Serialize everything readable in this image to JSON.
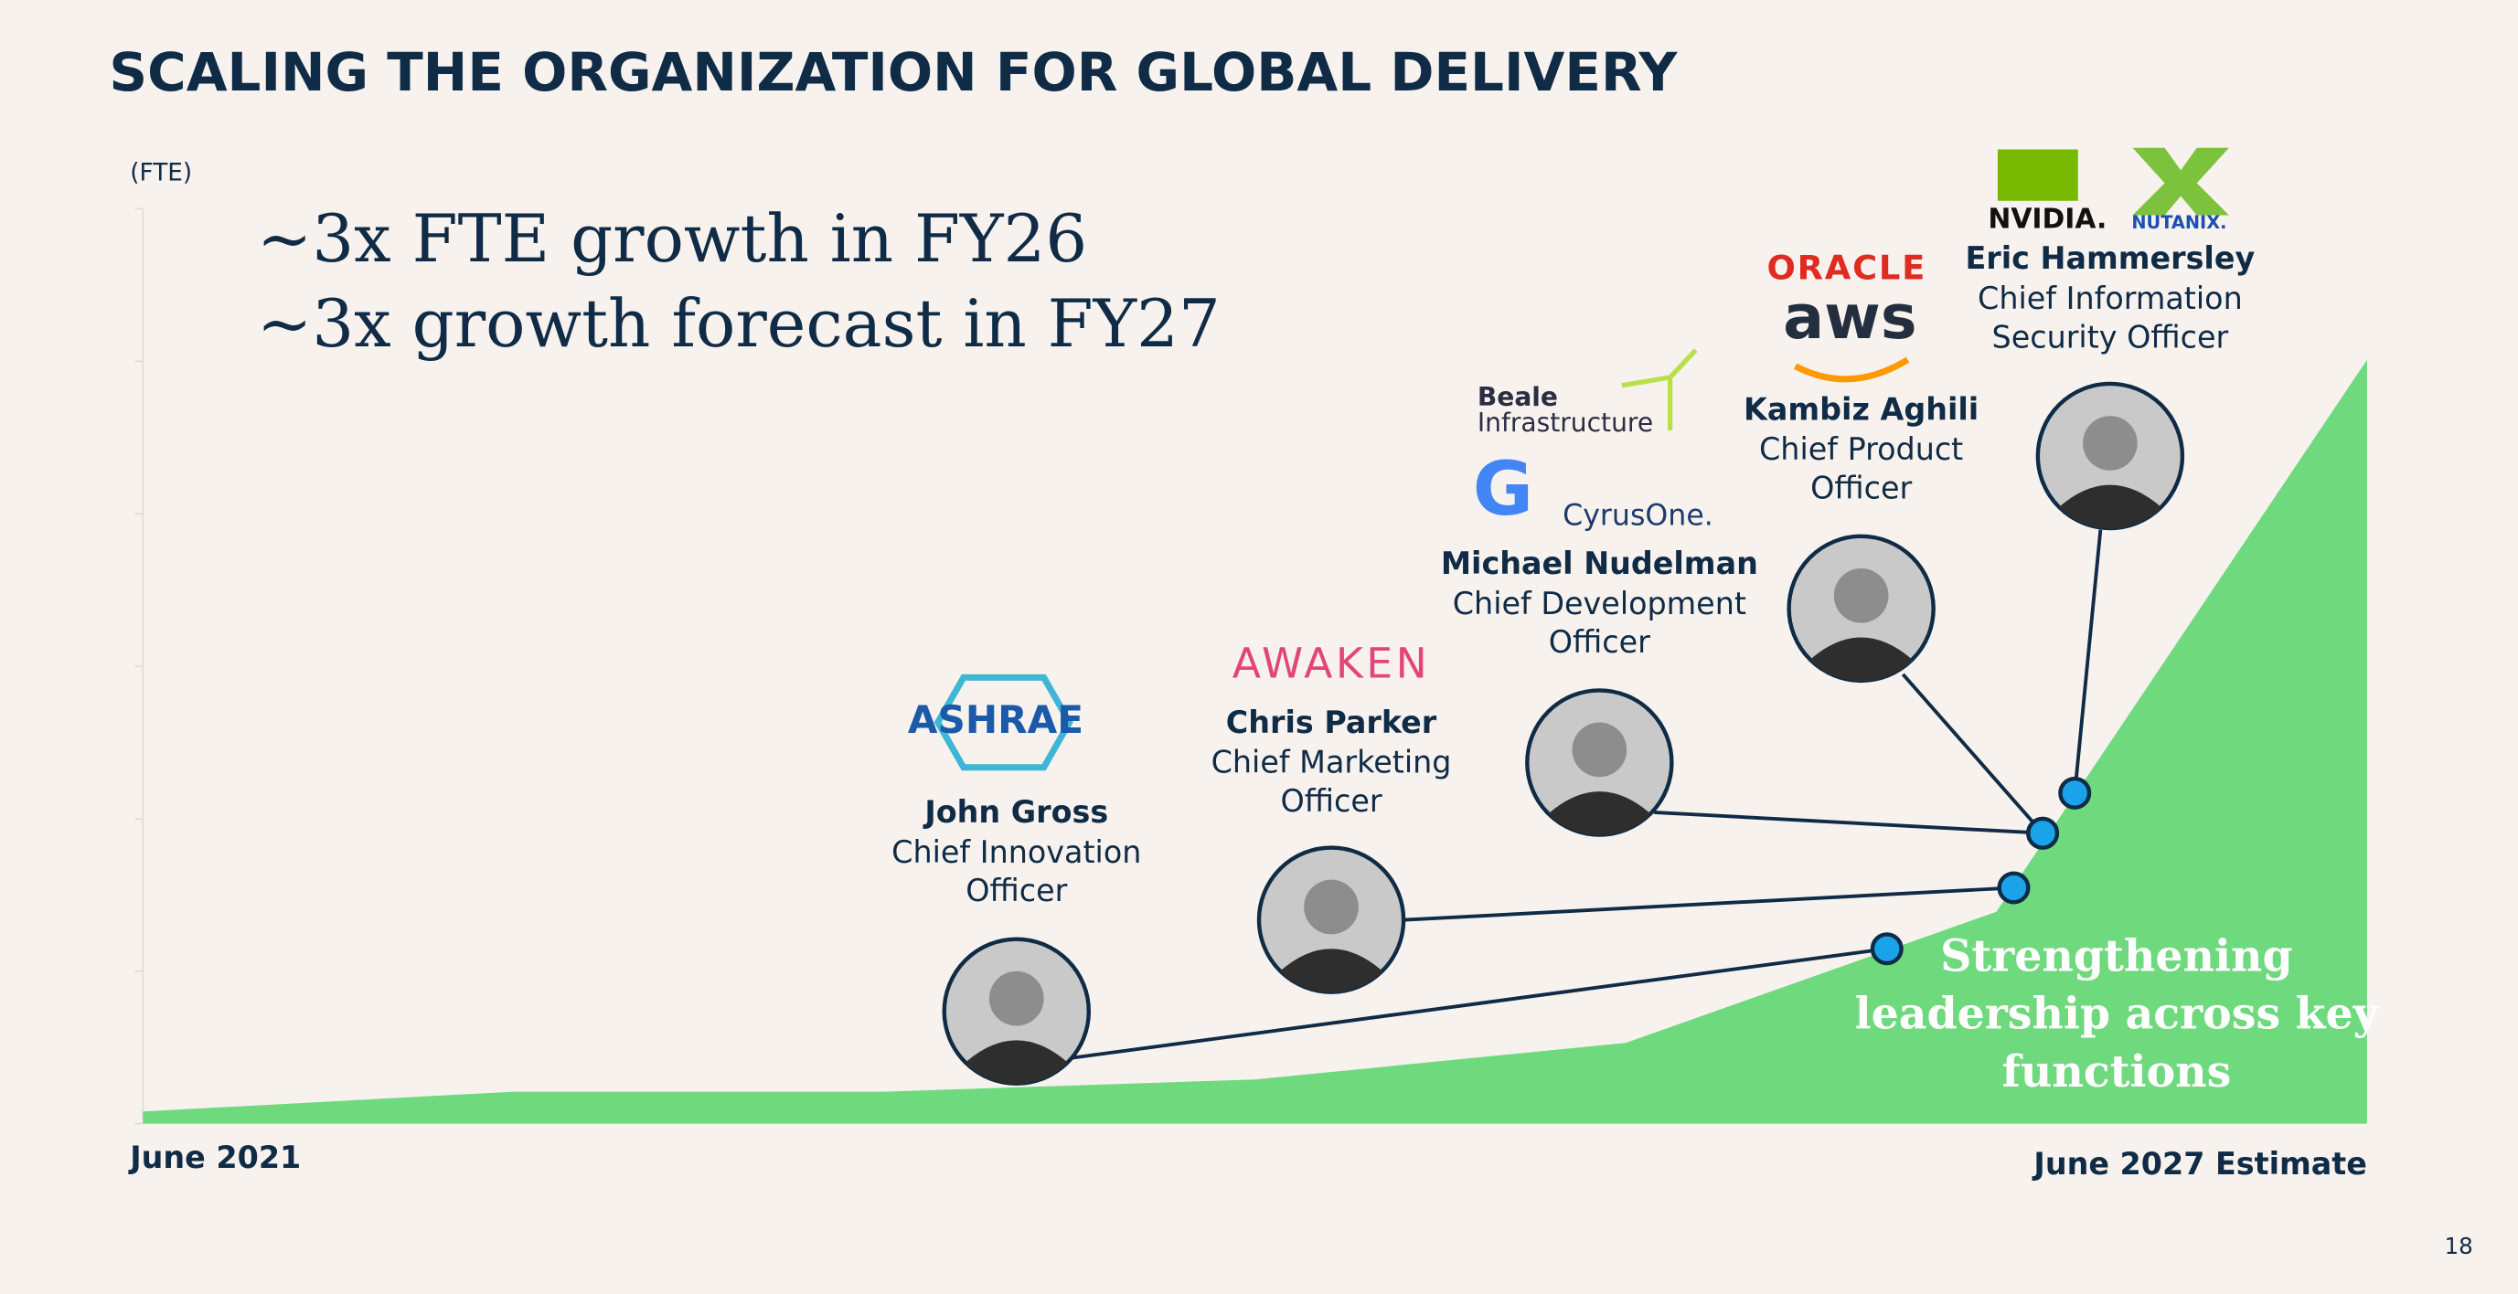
{
  "header": {
    "title": "SCALING THE ORGANIZATION FOR GLOBAL DELIVERY",
    "page_number": "18"
  },
  "headline": [
    "~3x FTE growth in FY26",
    "~3x growth forecast in FY27"
  ],
  "callout": [
    "Strengthening",
    "leadership across key",
    "functions"
  ],
  "chart_data": {
    "type": "area",
    "y_label": "(FTE)",
    "color": "#6fd97e",
    "categories": [
      "June 2021",
      null,
      null,
      null,
      null,
      null,
      "June 2027 Estimate"
    ],
    "values": [
      0.08,
      0.21,
      0.21,
      0.29,
      0.53,
      1.39,
      5.01
    ],
    "ylim": [
      0,
      6
    ]
  },
  "people": [
    {
      "name": "John Gross",
      "title_lines": [
        "Chief Innovation",
        "Officer"
      ],
      "logos": [
        "ASHRAE"
      ]
    },
    {
      "name": "Chris Parker",
      "title_lines": [
        "Chief Marketing",
        "Officer"
      ],
      "logos": [
        "AWAKEN"
      ]
    },
    {
      "name": "Michael Nudelman",
      "title_lines": [
        "Chief Development",
        "Officer"
      ],
      "logos": [
        "Beale",
        "Infrastructure",
        "G",
        "CyrusOne."
      ]
    },
    {
      "name": "Kambiz Aghili",
      "title_lines": [
        "Chief Product",
        "Officer"
      ],
      "logos": [
        "ORACLE",
        "aws"
      ]
    },
    {
      "name": "Eric Hammersley",
      "title_lines": [
        "Chief Information",
        "Security Officer"
      ],
      "logos": [
        "NVIDIA.",
        "NUTANIX."
      ]
    }
  ]
}
